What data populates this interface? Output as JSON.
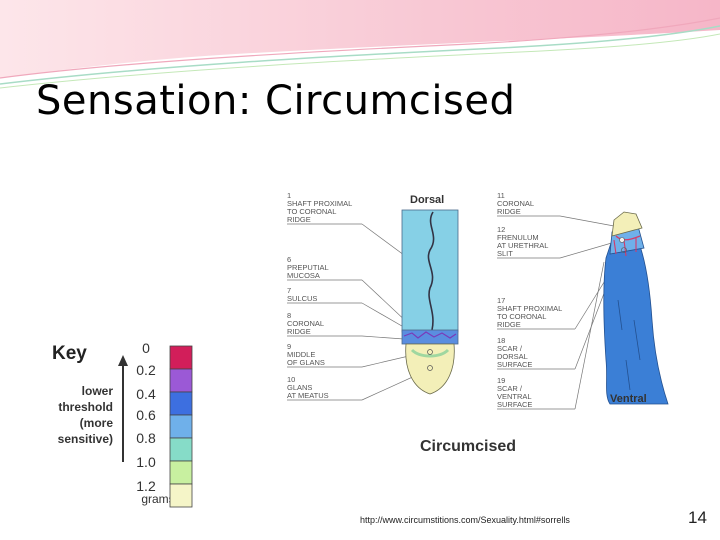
{
  "slide": {
    "title": "Sensation: Circumcised",
    "url": "http://www.circumstitions.com/Sexuality.html#sorrells",
    "page_number": "14"
  },
  "key": {
    "title": "Key",
    "side_label": [
      "lower",
      "threshold",
      "(more",
      "sensitive)"
    ],
    "ticks": [
      "0",
      "0.2",
      "0.4",
      "0.6",
      "0.8",
      "1.0",
      "1.2"
    ],
    "unit": "grams",
    "colors": [
      "#d21e5a",
      "#9b59d6",
      "#3d6fe0",
      "#6fb0ea",
      "#86dcc8",
      "#c8f0a0",
      "#f5f5c8"
    ]
  },
  "diagram": {
    "title": "Circumcised",
    "dorsal_label": "Dorsal",
    "ventral_label": "Ventral",
    "left_labels": [
      [
        "1",
        "SHAFT PROXIMAL",
        "TO CORONAL",
        "RIDGE"
      ],
      [
        "6",
        "PREPUTIAL",
        "MUCOSA"
      ],
      [
        "7",
        "SULCUS"
      ],
      [
        "8",
        "CORONAL",
        "RIDGE"
      ],
      [
        "9",
        "MIDDLE",
        "OF GLANS"
      ],
      [
        "10",
        "GLANS",
        "AT MEATUS"
      ]
    ],
    "right_labels": [
      [
        "11",
        "CORONAL",
        "RIDGE"
      ],
      [
        "12",
        "FRENULUM",
        "AT URETHRAL",
        "SLIT"
      ],
      [
        "17",
        "SHAFT PROXIMAL",
        "TO CORONAL",
        "RIDGE"
      ],
      [
        "18",
        "SCAR /",
        "DORSAL",
        "SURFACE"
      ],
      [
        "19",
        "SCAR /",
        "VENTRAL",
        "SURFACE"
      ]
    ],
    "colors": {
      "shaft_light": "#86d0e6",
      "shaft_blue": "#3b7fd6",
      "glans": "#f3efb8",
      "band": "#5a8ee0",
      "scar": "#d43a6a"
    }
  }
}
